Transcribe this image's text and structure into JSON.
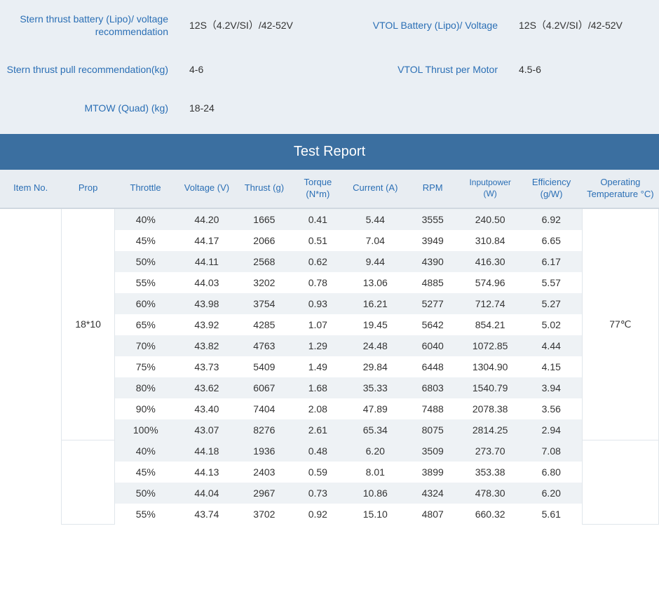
{
  "specs": {
    "row1": {
      "left_label": "Stern thrust battery (Lipo)/ voltage recommendation",
      "left_value": "12S（4.2V/SI）/42-52V",
      "right_label": "VTOL Battery (Lipo)/ Voltage",
      "right_value": "12S（4.2V/SI）/42-52V"
    },
    "row2": {
      "left_label": "Stern thrust pull recommendation(kg)",
      "left_value": "4-6",
      "right_label": "VTOL Thrust per Motor",
      "right_value": "4.5-6"
    },
    "row3": {
      "left_label": "MTOW (Quad) (kg)",
      "left_value": "18-24"
    }
  },
  "report": {
    "title": "Test Report",
    "columns": [
      "Item No.",
      "Prop",
      "Throttle",
      "Voltage (V)",
      "Thrust (g)",
      "Torque (N*m)",
      "Current (A)",
      "RPM",
      "Inputpower (W)",
      "Efficiency (g/W)",
      "Operating Temperature °C)"
    ],
    "group1": {
      "prop": "18*10",
      "temp": "77℃",
      "rows": [
        [
          "40%",
          "44.20",
          "1665",
          "0.41",
          "5.44",
          "3555",
          "240.50",
          "6.92"
        ],
        [
          "45%",
          "44.17",
          "2066",
          "0.51",
          "7.04",
          "3949",
          "310.84",
          "6.65"
        ],
        [
          "50%",
          "44.11",
          "2568",
          "0.62",
          "9.44",
          "4390",
          "416.30",
          "6.17"
        ],
        [
          "55%",
          "44.03",
          "3202",
          "0.78",
          "13.06",
          "4885",
          "574.96",
          "5.57"
        ],
        [
          "60%",
          "43.98",
          "3754",
          "0.93",
          "16.21",
          "5277",
          "712.74",
          "5.27"
        ],
        [
          "65%",
          "43.92",
          "4285",
          "1.07",
          "19.45",
          "5642",
          "854.21",
          "5.02"
        ],
        [
          "70%",
          "43.82",
          "4763",
          "1.29",
          "24.48",
          "6040",
          "1072.85",
          "4.44"
        ],
        [
          "75%",
          "43.73",
          "5409",
          "1.49",
          "29.84",
          "6448",
          "1304.90",
          "4.15"
        ],
        [
          "80%",
          "43.62",
          "6067",
          "1.68",
          "35.33",
          "6803",
          "1540.79",
          "3.94"
        ],
        [
          "90%",
          "43.40",
          "7404",
          "2.08",
          "47.89",
          "7488",
          "2078.38",
          "3.56"
        ],
        [
          "100%",
          "43.07",
          "8276",
          "2.61",
          "65.34",
          "8075",
          "2814.25",
          "2.94"
        ]
      ]
    },
    "group2": {
      "rows": [
        [
          "40%",
          "44.18",
          "1936",
          "0.48",
          "6.20",
          "3509",
          "273.70",
          "7.08"
        ],
        [
          "45%",
          "44.13",
          "2403",
          "0.59",
          "8.01",
          "3899",
          "353.38",
          "6.80"
        ],
        [
          "50%",
          "44.04",
          "2967",
          "0.73",
          "10.86",
          "4324",
          "478.30",
          "6.20"
        ],
        [
          "55%",
          "43.74",
          "3702",
          "0.92",
          "15.10",
          "4807",
          "660.32",
          "5.61"
        ]
      ]
    }
  }
}
